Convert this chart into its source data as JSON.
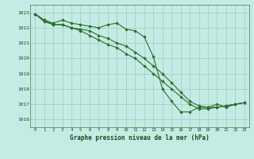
{
  "title": "Graphe pression niveau de la mer (hPa)",
  "bg_color": "#c5ece4",
  "grid_color": "#a8d4cc",
  "line_color": "#2d6e2d",
  "marker_color": "#2d6e2d",
  "x_ticks": [
    0,
    1,
    2,
    3,
    4,
    5,
    6,
    7,
    8,
    9,
    10,
    11,
    12,
    13,
    14,
    15,
    16,
    17,
    18,
    19,
    20,
    21,
    22,
    23
  ],
  "ylim": [
    1015.5,
    1023.5
  ],
  "y_ticks": [
    1016,
    1017,
    1018,
    1019,
    1020,
    1021,
    1022,
    1023
  ],
  "series": [
    [
      1022.9,
      1022.5,
      1022.3,
      1022.5,
      1022.3,
      1022.2,
      1022.1,
      1022.0,
      1022.2,
      1022.3,
      1021.9,
      1021.8,
      1021.4,
      1020.1,
      1018.0,
      1017.2,
      1016.5,
      1016.5,
      1016.8,
      1016.8,
      1017.0,
      1016.8,
      1017.0,
      1017.1
    ],
    [
      1022.9,
      1022.5,
      1022.2,
      1022.2,
      1022.0,
      1021.9,
      1021.8,
      1021.5,
      1021.3,
      1021.0,
      1020.8,
      1020.4,
      1020.0,
      1019.5,
      1019.0,
      1018.4,
      1017.8,
      1017.2,
      1016.9,
      1016.8,
      1016.8,
      1016.9,
      1017.0,
      1017.1
    ],
    [
      1022.9,
      1022.4,
      1022.2,
      1022.2,
      1022.0,
      1021.8,
      1021.5,
      1021.2,
      1020.9,
      1020.7,
      1020.3,
      1020.0,
      1019.5,
      1019.0,
      1018.5,
      1018.0,
      1017.5,
      1017.0,
      1016.7,
      1016.7,
      1016.8,
      1016.9,
      1017.0,
      1017.1
    ]
  ]
}
